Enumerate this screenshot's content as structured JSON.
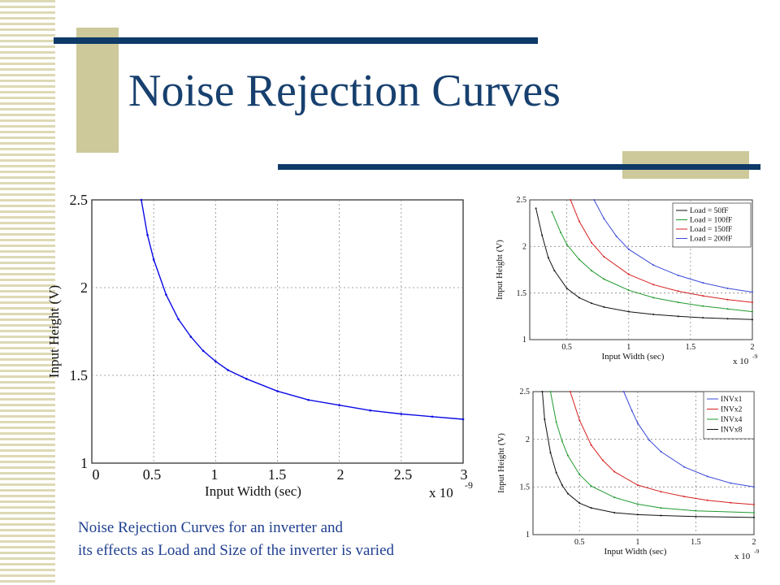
{
  "slide": {
    "title": "Noise Rejection Curves",
    "caption_line1": "Noise Rejection Curves for an inverter and",
    "caption_line2": "its effects as Load and Size of the inverter is varied"
  },
  "colors": {
    "title": "#17406e",
    "caption": "#1f3f8f",
    "accent_bar": "#0e3a68",
    "accent_block": "#cdc99a"
  },
  "chart_data": [
    {
      "type": "line",
      "title": "",
      "xlabel": "Input Width (sec)",
      "ylabel": "Input Height (V)",
      "x_multiplier": "x 10",
      "x_multiplier_exp": "-9",
      "xlim": [
        0,
        3
      ],
      "ylim": [
        1,
        2.5
      ],
      "xticks": [
        "0",
        "0.5",
        "1",
        "1.5",
        "2",
        "2.5",
        "3"
      ],
      "yticks": [
        "1",
        "1.5",
        "2",
        "2.5"
      ],
      "grid": true,
      "series": [
        {
          "color": "#0a0ae6",
          "x": [
            0.4,
            0.45,
            0.5,
            0.6,
            0.7,
            0.8,
            0.9,
            1.0,
            1.1,
            1.25,
            1.5,
            1.75,
            2.0,
            2.25,
            2.5,
            2.75,
            3.0
          ],
          "y": [
            2.5,
            2.3,
            2.16,
            1.96,
            1.82,
            1.72,
            1.64,
            1.58,
            1.53,
            1.48,
            1.41,
            1.36,
            1.33,
            1.3,
            1.28,
            1.265,
            1.25
          ]
        }
      ]
    },
    {
      "type": "line",
      "title": "",
      "xlabel": "Input Width (sec)",
      "ylabel": "Input Height (V)",
      "x_multiplier": "x 10",
      "x_multiplier_exp": "-9",
      "xlim": [
        0.2,
        2
      ],
      "ylim": [
        1,
        2.5
      ],
      "xticks": [
        "0.5",
        "1",
        "1.5",
        "2"
      ],
      "yticks": [
        "1",
        "1.5",
        "2",
        "2.5"
      ],
      "grid": true,
      "legend": "top-right",
      "series": [
        {
          "name": "Load = 50fF",
          "color": "#111111",
          "x": [
            0.25,
            0.3,
            0.35,
            0.4,
            0.5,
            0.6,
            0.7,
            0.8,
            1.0,
            1.2,
            1.4,
            1.6,
            1.8,
            2.0
          ],
          "y": [
            2.41,
            2.12,
            1.88,
            1.74,
            1.55,
            1.45,
            1.39,
            1.35,
            1.3,
            1.27,
            1.25,
            1.235,
            1.225,
            1.215
          ]
        },
        {
          "name": "Load = 100fF",
          "color": "#1f9a2e",
          "x": [
            0.38,
            0.45,
            0.5,
            0.6,
            0.7,
            0.8,
            1.0,
            1.2,
            1.4,
            1.6,
            1.8,
            2.0
          ],
          "y": [
            2.37,
            2.15,
            2.02,
            1.86,
            1.74,
            1.65,
            1.53,
            1.45,
            1.4,
            1.36,
            1.33,
            1.3
          ]
        },
        {
          "name": "Load = 150fF",
          "color": "#d61f1f",
          "x": [
            0.53,
            0.6,
            0.7,
            0.8,
            1.0,
            1.2,
            1.4,
            1.6,
            1.8,
            2.0
          ],
          "y": [
            2.5,
            2.27,
            2.04,
            1.89,
            1.7,
            1.59,
            1.52,
            1.47,
            1.43,
            1.4
          ]
        },
        {
          "name": "Load = 200fF",
          "color": "#3b4ad8",
          "x": [
            0.72,
            0.8,
            0.9,
            1.0,
            1.2,
            1.4,
            1.6,
            1.8,
            2.0
          ],
          "y": [
            2.5,
            2.3,
            2.11,
            1.97,
            1.8,
            1.69,
            1.61,
            1.55,
            1.51
          ]
        }
      ]
    },
    {
      "type": "line",
      "title": "",
      "xlabel": "Input Width (sec)",
      "ylabel": "Input Height (V)",
      "x_multiplier": "x 10",
      "x_multiplier_exp": "-9",
      "xlim": [
        0.1,
        2
      ],
      "ylim": [
        1,
        2.5
      ],
      "xticks": [
        "0.5",
        "1",
        "1.5",
        "2"
      ],
      "yticks": [
        "1",
        "1.5",
        "2",
        "2.5"
      ],
      "grid": true,
      "legend": "top-right",
      "series": [
        {
          "name": "INVx1",
          "color": "#3b4ad8",
          "x": [
            0.88,
            0.95,
            1.0,
            1.1,
            1.2,
            1.4,
            1.6,
            1.8,
            2.0
          ],
          "y": [
            2.5,
            2.3,
            2.17,
            1.99,
            1.87,
            1.71,
            1.61,
            1.54,
            1.5
          ]
        },
        {
          "name": "INVx2",
          "color": "#d61f1f",
          "x": [
            0.42,
            0.5,
            0.6,
            0.7,
            0.8,
            1.0,
            1.2,
            1.4,
            1.6,
            1.8,
            2.0
          ],
          "y": [
            2.5,
            2.2,
            1.94,
            1.78,
            1.66,
            1.52,
            1.45,
            1.4,
            1.36,
            1.335,
            1.315
          ]
        },
        {
          "name": "INVx4",
          "color": "#1f9a2e",
          "x": [
            0.25,
            0.3,
            0.35,
            0.4,
            0.5,
            0.6,
            0.8,
            1.0,
            1.2,
            1.5,
            2.0
          ],
          "y": [
            2.5,
            2.18,
            1.98,
            1.83,
            1.63,
            1.51,
            1.39,
            1.32,
            1.28,
            1.25,
            1.23
          ]
        },
        {
          "name": "INVx8",
          "color": "#111111",
          "x": [
            0.18,
            0.2,
            0.25,
            0.3,
            0.35,
            0.4,
            0.5,
            0.6,
            0.8,
            1.0,
            1.2,
            1.5,
            2.0
          ],
          "y": [
            2.5,
            2.21,
            1.86,
            1.65,
            1.52,
            1.43,
            1.33,
            1.28,
            1.23,
            1.21,
            1.2,
            1.19,
            1.18
          ]
        }
      ]
    }
  ]
}
